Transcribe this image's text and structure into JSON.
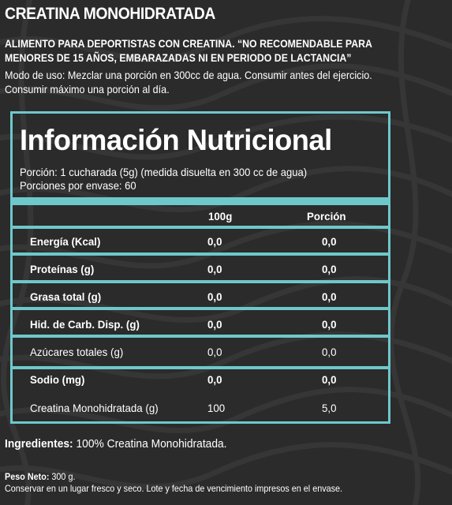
{
  "product_title": "CREATINA MONOHIDRATADA",
  "warning_lines": [
    "ALIMENTO PARA DEPORTISTAS CON CREATINA. “NO RECOMENDABLE PARA",
    "MENORES DE 15 AÑOS, EMBARAZADAS NI EN PERIODO DE LACTANCIA”"
  ],
  "usage_lines": [
    "Modo de uso: Mezclar una porción en 300cc de agua. Consumir antes del ejercicio.",
    "Consumir máximo una porción al día."
  ],
  "nutrition": {
    "heading": "Información Nutricional",
    "serving": "Porción: 1 cucharada (5g) (medida disuelta en 300 cc de agua)",
    "servings_per_container": "Porciones por envase: 60",
    "columns": [
      "100g",
      "Porción"
    ],
    "rows": [
      {
        "name": "Energía (Kcal)",
        "per100": "0,0",
        "portion": "0,0"
      },
      {
        "name": "Proteínas (g)",
        "per100": "0,0",
        "portion": "0,0"
      },
      {
        "name": "Grasa total (g)",
        "per100": "0,0",
        "portion": "0,0"
      },
      {
        "name": "Hid. de Carb. Disp. (g)",
        "per100": "0,0",
        "portion": "0,0"
      },
      {
        "name": "Azúcares totales (g)",
        "per100": "0,0",
        "portion": "0,0"
      },
      {
        "name": "Sodio (mg)",
        "per100": "0,0",
        "portion": "0,0"
      },
      {
        "name": "Creatina Monohidratada (g)",
        "per100": "100",
        "portion": "5,0"
      }
    ]
  },
  "ingredients": {
    "label": "Ingredientes:",
    "text": " 100% Creatina Monohidratada."
  },
  "net_weight": {
    "label": "Peso Neto:",
    "text": " 300 g."
  },
  "storage": "Conservar en un lugar fresco y seco. Lote y fecha de vencimiento impresos en el envase.",
  "colors": {
    "background": "#2b2b2b",
    "accent": "#6ec8cb",
    "text": "#ffffff"
  }
}
